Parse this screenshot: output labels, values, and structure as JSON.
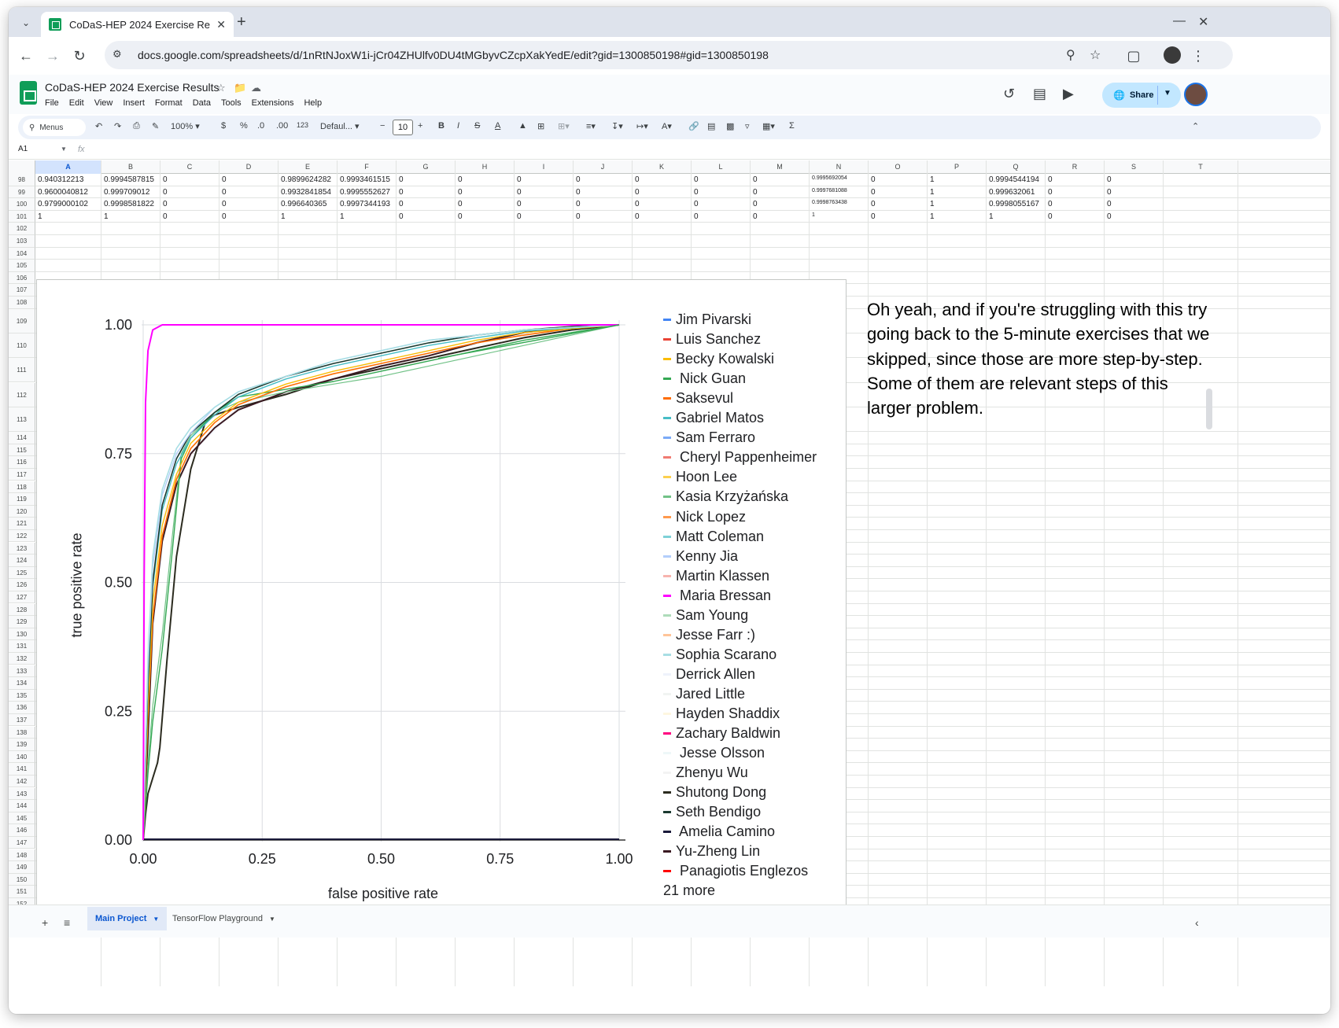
{
  "browser": {
    "tab_title": "CoDaS-HEP 2024 Exercise Re",
    "url": "docs.google.com/spreadsheets/d/1nRtNJoxW1i-jCr04ZHUlfv0DU4tMGbyvCZcpXakYedE/edit?gid=1300850198#gid=1300850198",
    "icons": [
      "tab-search",
      "close",
      "new-tab",
      "minimize",
      "close-window",
      "back",
      "forward",
      "reload",
      "site-info",
      "zoom",
      "bookmark-star",
      "extensions",
      "profile",
      "kebab-menu"
    ]
  },
  "doc": {
    "title": "CoDaS-HEP 2024 Exercise Results",
    "menus": [
      "File",
      "Edit",
      "View",
      "Insert",
      "Format",
      "Data",
      "Tools",
      "Extensions",
      "Help"
    ],
    "share_label": "Share"
  },
  "toolbar": {
    "search_label": "Menus",
    "zoom": "100%",
    "currency": "$",
    "percent": "%",
    "dec_decrease": ".0",
    "dec_increase": ".00",
    "number_format": "123",
    "font": "Defaul...",
    "font_size": "10",
    "bold": "B",
    "italic": "I",
    "minus": "−",
    "plus": "+"
  },
  "formula_bar": {
    "cell_ref": "A1",
    "fx": "fx"
  },
  "grid": {
    "columns": [
      "A",
      "B",
      "C",
      "D",
      "E",
      "F",
      "G",
      "H",
      "I",
      "J",
      "K",
      "L",
      "M",
      "N",
      "O",
      "P",
      "Q",
      "R",
      "S",
      "T"
    ],
    "selected_column": "A",
    "row_numbers": [
      "98",
      "99",
      "100",
      "101",
      "102",
      "103",
      "104",
      "105",
      "106",
      "107",
      "108",
      "109",
      "110",
      "111",
      "112",
      "113",
      "114",
      "115",
      "116",
      "117",
      "118",
      "119",
      "120",
      "121",
      "122",
      "123",
      "124",
      "125",
      "126",
      "127",
      "128",
      "129",
      "130",
      "131",
      "132",
      "133",
      "134",
      "135",
      "136",
      "137",
      "138",
      "139",
      "140",
      "141",
      "142",
      "143",
      "144",
      "145",
      "146",
      "147",
      "148",
      "149",
      "150",
      "151",
      "152"
    ],
    "data_rows": [
      [
        "0.940312213",
        "0.9994587815",
        "0",
        "0",
        "0.9899624282",
        "0.9993461515",
        "0",
        "0",
        "0",
        "0",
        "0",
        "0",
        "0",
        "0.9995692054",
        "0",
        "1",
        "0.9994544194",
        "0",
        "0"
      ],
      [
        "0.9600040812",
        "0.999709012",
        "0",
        "0",
        "0.9932841854",
        "0.9995552627",
        "0",
        "0",
        "0",
        "0",
        "0",
        "0",
        "0",
        "0.9997681088",
        "0",
        "1",
        "0.999632061",
        "0",
        "0"
      ],
      [
        "0.9799000102",
        "0.9998581822",
        "0",
        "0",
        "0.996640365",
        "0.9997344193",
        "0",
        "0",
        "0",
        "0",
        "0",
        "0",
        "0",
        "0.9998763438",
        "0",
        "1",
        "0.9998055167",
        "0",
        "0"
      ],
      [
        "1",
        "1",
        "0",
        "0",
        "1",
        "1",
        "0",
        "0",
        "0",
        "0",
        "0",
        "0",
        "0",
        "1",
        "0",
        "1",
        "1",
        "0",
        "0"
      ]
    ]
  },
  "note": "Oh yeah, and if you're struggling with this try going back to the 5-minute exercises that we skipped, since those are more step-by-step. Some of them are relevant steps of this larger problem.",
  "chart_data": {
    "type": "line",
    "title": "",
    "xlabel": "false positive rate",
    "ylabel": "true positive rate",
    "xlim": [
      0,
      1
    ],
    "ylim": [
      0,
      1
    ],
    "xticks": [
      "0.00",
      "0.25",
      "0.50",
      "0.75",
      "1.00"
    ],
    "yticks": [
      "0.00",
      "0.25",
      "0.50",
      "0.75",
      "1.00"
    ],
    "grid": true,
    "legend_position": "right",
    "legend_more": "21 more",
    "series": [
      {
        "name": "Jim Pivarski",
        "color": "#4285f4"
      },
      {
        "name": "Luis Sanchez",
        "color": "#ea4335"
      },
      {
        "name": "Becky Kowalski",
        "color": "#fbbc04"
      },
      {
        "name": " Nick Guan",
        "color": "#34a853"
      },
      {
        "name": "Saksevul",
        "color": "#ff6d01"
      },
      {
        "name": "Gabriel Matos",
        "color": "#46bdc6"
      },
      {
        "name": "Sam Ferraro",
        "color": "#7baaf7"
      },
      {
        "name": " Cheryl Pappenheimer",
        "color": "#f07b72"
      },
      {
        "name": "Hoon Lee",
        "color": "#fcd04f"
      },
      {
        "name": "Kasia Krzyżańska",
        "color": "#71c287"
      },
      {
        "name": "Nick Lopez",
        "color": "#ff994d"
      },
      {
        "name": "Matt Coleman",
        "color": "#7ed1d7"
      },
      {
        "name": "Kenny Jia",
        "color": "#b3cefb"
      },
      {
        "name": "Martin Klassen",
        "color": "#f7b4ae"
      },
      {
        "name": " Maria Bressan",
        "color": "#ff00ff"
      },
      {
        "name": "Sam Young",
        "color": "#aedcba"
      },
      {
        "name": "Jesse Farr :)",
        "color": "#ffc599"
      },
      {
        "name": "Sophia Scarano",
        "color": "#a8dee4"
      },
      {
        "name": "Derrick Allen",
        "color": "#eef2fb"
      },
      {
        "name": "Jared Little",
        "color": "#f1f4f2"
      },
      {
        "name": "Hayden Shaddix",
        "color": "#fef7e0"
      },
      {
        "name": "Zachary Baldwin",
        "color": "#ff0080"
      },
      {
        "name": " Jesse Olsson",
        "color": "#eef7f8"
      },
      {
        "name": "Zhenyu Wu",
        "color": "#f3f3f3"
      },
      {
        "name": "Shutong Dong",
        "color": "#2b2b1f"
      },
      {
        "name": "Seth Bendigo",
        "color": "#1b3a30"
      },
      {
        "name": " Amelia Camino",
        "color": "#1a1a3a"
      },
      {
        "name": "Yu-Zheng Lin",
        "color": "#3a1a22"
      },
      {
        "name": " Panagiotis Englezos",
        "color": "#ff0000"
      }
    ],
    "curves": [
      {
        "color": "#ff00ff",
        "width": 2,
        "points": [
          [
            0,
            0
          ],
          [
            0.002,
            0.5
          ],
          [
            0.005,
            0.85
          ],
          [
            0.01,
            0.95
          ],
          [
            0.02,
            0.99
          ],
          [
            0.04,
            1.0
          ],
          [
            1,
            1
          ]
        ]
      },
      {
        "color": "#a8dee4",
        "width": 1.6,
        "points": [
          [
            0,
            0
          ],
          [
            0.01,
            0.35
          ],
          [
            0.02,
            0.55
          ],
          [
            0.04,
            0.68
          ],
          [
            0.07,
            0.76
          ],
          [
            0.1,
            0.8
          ],
          [
            0.15,
            0.84
          ],
          [
            0.2,
            0.87
          ],
          [
            0.3,
            0.9
          ],
          [
            0.4,
            0.93
          ],
          [
            0.5,
            0.95
          ],
          [
            0.6,
            0.97
          ],
          [
            0.7,
            0.98
          ],
          [
            0.8,
            0.99
          ],
          [
            0.9,
            0.995
          ],
          [
            1,
            1
          ]
        ]
      },
      {
        "color": "#b3cefb",
        "width": 1.4,
        "points": [
          [
            0,
            0
          ],
          [
            0.01,
            0.33
          ],
          [
            0.02,
            0.53
          ],
          [
            0.04,
            0.67
          ],
          [
            0.07,
            0.75
          ],
          [
            0.1,
            0.79
          ],
          [
            0.15,
            0.84
          ],
          [
            0.2,
            0.87
          ],
          [
            0.3,
            0.9
          ],
          [
            0.4,
            0.93
          ],
          [
            0.5,
            0.95
          ],
          [
            0.6,
            0.97
          ],
          [
            0.7,
            0.98
          ],
          [
            0.8,
            0.99
          ],
          [
            1,
            1
          ]
        ]
      },
      {
        "color": "#1b3a30",
        "width": 1.6,
        "points": [
          [
            0,
            0
          ],
          [
            0.01,
            0.3
          ],
          [
            0.02,
            0.5
          ],
          [
            0.04,
            0.65
          ],
          [
            0.07,
            0.74
          ],
          [
            0.1,
            0.79
          ],
          [
            0.15,
            0.83
          ],
          [
            0.2,
            0.865
          ],
          [
            0.3,
            0.9
          ],
          [
            0.4,
            0.925
          ],
          [
            0.5,
            0.945
          ],
          [
            0.6,
            0.965
          ],
          [
            0.7,
            0.98
          ],
          [
            0.8,
            0.99
          ],
          [
            0.9,
            0.997
          ],
          [
            1,
            1
          ]
        ]
      },
      {
        "color": "#46bdc6",
        "width": 1.4,
        "points": [
          [
            0,
            0
          ],
          [
            0.01,
            0.29
          ],
          [
            0.02,
            0.49
          ],
          [
            0.04,
            0.64
          ],
          [
            0.07,
            0.73
          ],
          [
            0.1,
            0.78
          ],
          [
            0.15,
            0.825
          ],
          [
            0.2,
            0.86
          ],
          [
            0.3,
            0.895
          ],
          [
            0.4,
            0.92
          ],
          [
            0.5,
            0.94
          ],
          [
            0.6,
            0.96
          ],
          [
            0.7,
            0.975
          ],
          [
            0.8,
            0.988
          ],
          [
            1,
            1
          ]
        ]
      },
      {
        "color": "#fbbc04",
        "width": 1.4,
        "points": [
          [
            0,
            0
          ],
          [
            0.01,
            0.26
          ],
          [
            0.02,
            0.46
          ],
          [
            0.04,
            0.61
          ],
          [
            0.07,
            0.71
          ],
          [
            0.1,
            0.77
          ],
          [
            0.15,
            0.815
          ],
          [
            0.2,
            0.85
          ],
          [
            0.3,
            0.885
          ],
          [
            0.4,
            0.91
          ],
          [
            0.5,
            0.93
          ],
          [
            0.6,
            0.95
          ],
          [
            0.7,
            0.97
          ],
          [
            0.8,
            0.985
          ],
          [
            1,
            1
          ]
        ]
      },
      {
        "color": "#ff6d01",
        "width": 1.6,
        "points": [
          [
            0,
            0
          ],
          [
            0.01,
            0.24
          ],
          [
            0.02,
            0.43
          ],
          [
            0.04,
            0.59
          ],
          [
            0.07,
            0.7
          ],
          [
            0.1,
            0.76
          ],
          [
            0.15,
            0.81
          ],
          [
            0.2,
            0.845
          ],
          [
            0.3,
            0.88
          ],
          [
            0.4,
            0.905
          ],
          [
            0.5,
            0.925
          ],
          [
            0.6,
            0.945
          ],
          [
            0.7,
            0.965
          ],
          [
            0.8,
            0.98
          ],
          [
            0.9,
            0.993
          ],
          [
            1,
            1
          ]
        ]
      },
      {
        "color": "#34a853",
        "width": 1.4,
        "points": [
          [
            0,
            0
          ],
          [
            0.01,
            0.13
          ],
          [
            0.02,
            0.23
          ],
          [
            0.04,
            0.37
          ],
          [
            0.06,
            0.55
          ],
          [
            0.08,
            0.74
          ],
          [
            0.1,
            0.78
          ],
          [
            0.15,
            0.83
          ],
          [
            0.2,
            0.86
          ],
          [
            0.3,
            0.875
          ],
          [
            0.4,
            0.89
          ],
          [
            0.5,
            0.91
          ],
          [
            0.6,
            0.93
          ],
          [
            0.7,
            0.95
          ],
          [
            0.8,
            0.97
          ],
          [
            0.9,
            0.985
          ],
          [
            1,
            1
          ]
        ]
      },
      {
        "color": "#71c287",
        "width": 1.2,
        "points": [
          [
            0,
            0
          ],
          [
            0.01,
            0.15
          ],
          [
            0.02,
            0.26
          ],
          [
            0.04,
            0.4
          ],
          [
            0.06,
            0.58
          ],
          [
            0.08,
            0.75
          ],
          [
            0.1,
            0.785
          ],
          [
            0.15,
            0.83
          ],
          [
            0.2,
            0.85
          ],
          [
            0.3,
            0.87
          ],
          [
            0.4,
            0.885
          ],
          [
            0.5,
            0.9
          ],
          [
            0.6,
            0.92
          ],
          [
            0.7,
            0.94
          ],
          [
            0.8,
            0.96
          ],
          [
            0.9,
            0.98
          ],
          [
            1,
            1
          ]
        ]
      },
      {
        "color": "#3a1a22",
        "width": 2,
        "points": [
          [
            0,
            0
          ],
          [
            0.01,
            0.2
          ],
          [
            0.02,
            0.42
          ],
          [
            0.04,
            0.58
          ],
          [
            0.07,
            0.69
          ],
          [
            0.1,
            0.75
          ],
          [
            0.15,
            0.8
          ],
          [
            0.2,
            0.835
          ],
          [
            0.3,
            0.87
          ],
          [
            0.4,
            0.895
          ],
          [
            0.5,
            0.92
          ],
          [
            0.6,
            0.94
          ],
          [
            0.7,
            0.965
          ],
          [
            0.8,
            0.985
          ],
          [
            0.9,
            0.995
          ],
          [
            1,
            1
          ]
        ]
      },
      {
        "color": "#2b2b1f",
        "width": 2,
        "points": [
          [
            0,
            0
          ],
          [
            0.005,
            0.05
          ],
          [
            0.01,
            0.09
          ],
          [
            0.02,
            0.12
          ],
          [
            0.03,
            0.15
          ],
          [
            0.035,
            0.18
          ],
          [
            0.05,
            0.35
          ],
          [
            0.07,
            0.55
          ],
          [
            0.1,
            0.72
          ],
          [
            0.13,
            0.81
          ],
          [
            0.15,
            0.825
          ],
          [
            0.2,
            0.84
          ],
          [
            0.3,
            0.865
          ],
          [
            0.4,
            0.895
          ],
          [
            0.5,
            0.915
          ],
          [
            0.6,
            0.935
          ],
          [
            0.7,
            0.955
          ],
          [
            0.8,
            0.975
          ],
          [
            0.9,
            0.99
          ],
          [
            1,
            1
          ]
        ]
      },
      {
        "color": "#eef2fb",
        "width": 1.2,
        "points": [
          [
            0,
            0
          ],
          [
            0.01,
            0.4
          ],
          [
            0.03,
            0.58
          ],
          [
            0.06,
            0.69
          ],
          [
            0.1,
            0.75
          ],
          [
            0.2,
            0.84
          ],
          [
            0.3,
            0.88
          ],
          [
            0.5,
            0.93
          ],
          [
            0.7,
            0.97
          ],
          [
            1,
            1
          ]
        ]
      }
    ]
  }
}
